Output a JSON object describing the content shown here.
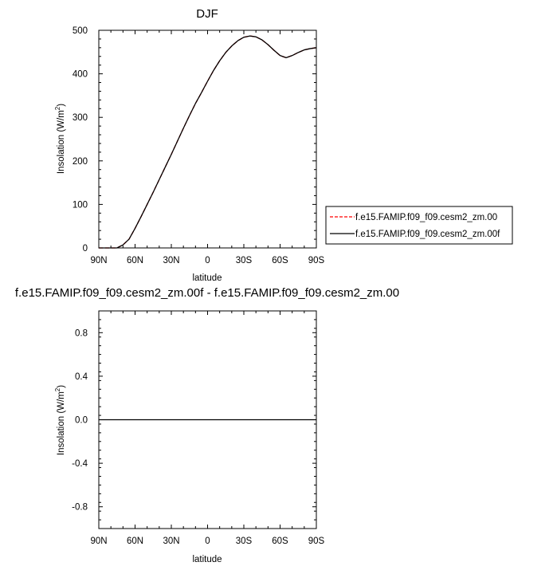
{
  "chart_data": [
    {
      "type": "line",
      "title": "DJF",
      "xlabel": "latitude",
      "ylabel": "Insolation (W/m",
      "ylabel_sup": "2",
      "ylabel_close": ")",
      "xlim": [
        -90,
        90
      ],
      "ylim": [
        0,
        500
      ],
      "x_direction": "north-to-south",
      "xticks": [
        {
          "value": -90,
          "label": "90N"
        },
        {
          "value": -60,
          "label": "60N"
        },
        {
          "value": -30,
          "label": "30N"
        },
        {
          "value": 0,
          "label": "0"
        },
        {
          "value": 30,
          "label": "30S"
        },
        {
          "value": 60,
          "label": "60S"
        },
        {
          "value": 90,
          "label": "90S"
        }
      ],
      "yticks": [
        {
          "value": 0,
          "label": "0"
        },
        {
          "value": 100,
          "label": "100"
        },
        {
          "value": 200,
          "label": "200"
        },
        {
          "value": 300,
          "label": "300"
        },
        {
          "value": 400,
          "label": "400"
        },
        {
          "value": 500,
          "label": "500"
        }
      ],
      "legend_position": "right",
      "series": [
        {
          "name": "f.e15.FAMIP.f09_f09.cesm2_zm.00",
          "color": "#ff0000",
          "dash": "dashed",
          "x": [
            -90,
            -80,
            -75,
            -70,
            -65,
            -60,
            -55,
            -50,
            -45,
            -40,
            -35,
            -30,
            -25,
            -20,
            -15,
            -10,
            -5,
            0,
            5,
            10,
            15,
            20,
            25,
            30,
            35,
            40,
            45,
            50,
            55,
            60,
            65,
            70,
            75,
            80,
            85,
            90
          ],
          "y": [
            0,
            0,
            0,
            7,
            20,
            45,
            72,
            100,
            128,
            157,
            186,
            215,
            245,
            275,
            304,
            332,
            357,
            383,
            408,
            430,
            449,
            464,
            476,
            484,
            487,
            485,
            478,
            467,
            454,
            442,
            437,
            442,
            449,
            455,
            458,
            460
          ]
        },
        {
          "name": "f.e15.FAMIP.f09_f09.cesm2_zm.00f",
          "color": "#000000",
          "dash": "solid",
          "x": [
            -90,
            -80,
            -75,
            -70,
            -65,
            -60,
            -55,
            -50,
            -45,
            -40,
            -35,
            -30,
            -25,
            -20,
            -15,
            -10,
            -5,
            0,
            5,
            10,
            15,
            20,
            25,
            30,
            35,
            40,
            45,
            50,
            55,
            60,
            65,
            70,
            75,
            80,
            85,
            90
          ],
          "y": [
            0,
            0,
            0,
            7,
            20,
            45,
            72,
            100,
            128,
            157,
            186,
            215,
            245,
            275,
            304,
            332,
            357,
            383,
            408,
            430,
            449,
            464,
            476,
            484,
            487,
            485,
            478,
            467,
            454,
            442,
            437,
            442,
            449,
            455,
            458,
            460
          ]
        }
      ]
    },
    {
      "type": "line",
      "title": "f.e15.FAMIP.f09_f09.cesm2_zm.00f - f.e15.FAMIP.f09_f09.cesm2_zm.00",
      "xlabel": "latitude",
      "ylabel": "Insolation (W/m",
      "ylabel_sup": "2",
      "ylabel_close": ")",
      "xlim": [
        -90,
        90
      ],
      "ylim": [
        -1,
        1
      ],
      "x_direction": "north-to-south",
      "xticks": [
        {
          "value": -90,
          "label": "90N"
        },
        {
          "value": -60,
          "label": "60N"
        },
        {
          "value": -30,
          "label": "30N"
        },
        {
          "value": 0,
          "label": "0"
        },
        {
          "value": 30,
          "label": "30S"
        },
        {
          "value": 60,
          "label": "60S"
        },
        {
          "value": 90,
          "label": "90S"
        }
      ],
      "yticks": [
        {
          "value": -0.8,
          "label": "-0.8"
        },
        {
          "value": -0.4,
          "label": "-0.4"
        },
        {
          "value": 0.0,
          "label": "0.0"
        },
        {
          "value": 0.4,
          "label": "0.4"
        },
        {
          "value": 0.8,
          "label": "0.8"
        }
      ],
      "series": [
        {
          "color": "#000000",
          "dash": "solid",
          "x": [
            -90,
            90
          ],
          "y": [
            0,
            0
          ]
        }
      ]
    }
  ]
}
